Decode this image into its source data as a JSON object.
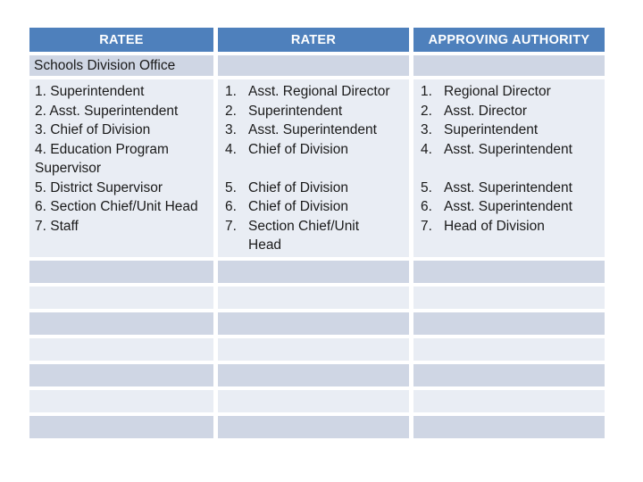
{
  "table": {
    "columns": [
      {
        "id": "ratee",
        "header": "RATEE"
      },
      {
        "id": "rater",
        "header": "RATER"
      },
      {
        "id": "approving_authority",
        "header": "APPROVING AUTHORITY"
      }
    ],
    "section_row": {
      "ratee": "Schools Division Office"
    },
    "content_row": {
      "ratee": {
        "lines": [
          "1. Superintendent",
          "2. Asst. Superintendent",
          "3. Chief of Division",
          "4. Education Program\nSupervisor",
          "5. District Supervisor",
          "6. Section Chief/Unit Head",
          "7. Staff"
        ]
      },
      "rater": {
        "items": [
          {
            "num": "1.",
            "text": "Asst. Regional Director"
          },
          {
            "num": "2.",
            "text": "Superintendent"
          },
          {
            "num": "3.",
            "text": "Asst. Superintendent"
          },
          {
            "num": "4.",
            "text": "Chief of Division"
          },
          {
            "spacer": true
          },
          {
            "num": "5.",
            "text": "Chief of Division"
          },
          {
            "num": "6.",
            "text": "Chief of Division"
          },
          {
            "num": "7.",
            "text": "Section Chief/Unit\nHead"
          }
        ]
      },
      "approving_authority": {
        "items": [
          {
            "num": "1.",
            "text": "Regional Director"
          },
          {
            "num": "2.",
            "text": "Asst. Director"
          },
          {
            "num": "3.",
            "text": "Superintendent"
          },
          {
            "num": "4.",
            "text": "Asst. Superintendent"
          },
          {
            "spacer": true
          },
          {
            "num": "5.",
            "text": "Asst. Superintendent"
          },
          {
            "num": "6.",
            "text": "Asst. Superintendent"
          },
          {
            "num": "7.",
            "text": "Head of Division"
          }
        ]
      }
    },
    "empty_rows": 7
  },
  "colors": {
    "header_bg": "#4e80bc",
    "header_text": "#ffffff",
    "band_dark": "#cfd6e4",
    "band_light": "#e9edf4",
    "grid": "#ffffff",
    "body_text": "#1a1a1a"
  }
}
